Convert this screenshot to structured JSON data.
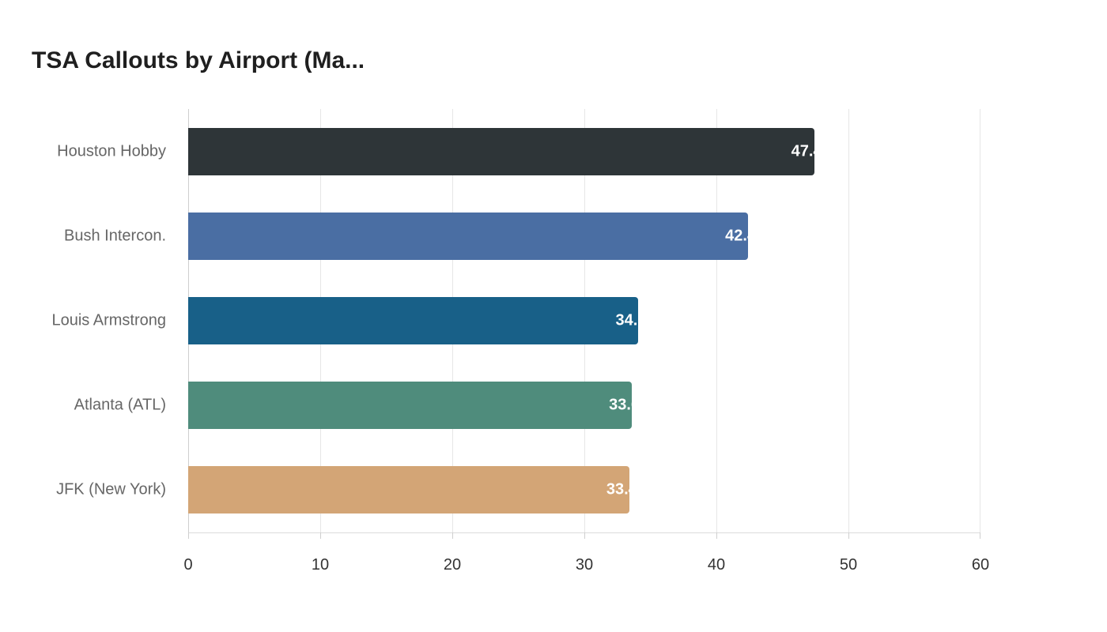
{
  "chart_data": {
    "type": "bar",
    "orientation": "horizontal",
    "title": "TSA Callouts by Airport (Ma...",
    "categories": [
      "Houston Hobby",
      "Bush Intercon.",
      "Louis Armstrong",
      "Atlanta (ATL)",
      "JFK (New York)"
    ],
    "values": [
      47.4,
      42.4,
      34.1,
      33.6,
      33.4
    ],
    "colors": [
      "#2e3538",
      "#4a6ea3",
      "#186088",
      "#4f8c7c",
      "#d3a576"
    ],
    "xlabel": "",
    "ylabel": "",
    "xlim": [
      0,
      60
    ],
    "xticks": [
      "0",
      "10",
      "20",
      "30",
      "40",
      "50",
      "60"
    ],
    "grid": true,
    "legend": "none"
  }
}
